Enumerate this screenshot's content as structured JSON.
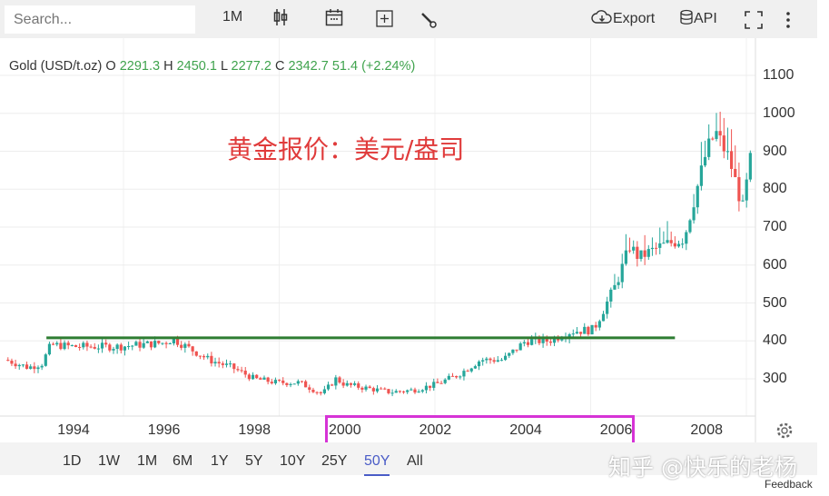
{
  "toolbar": {
    "search_placeholder": "Search...",
    "interval": "1M",
    "export": "Export",
    "api": "API"
  },
  "legend": {
    "name": "Gold (USD/t.oz)",
    "o_label": "O",
    "open": "2291.3",
    "h_label": "H",
    "high": "2450.1",
    "l_label": "L",
    "low": "2277.2",
    "c_label": "C",
    "close": "2342.7",
    "change": "51.4 (+2.24%)"
  },
  "annotation": "黄金报价：美元/盎司",
  "watermark": "知乎 @快乐的老杨",
  "feedback": "Feedback",
  "ranges": [
    "1D",
    "1W",
    "1M",
    "6M",
    "1Y",
    "5Y",
    "10Y",
    "25Y",
    "50Y",
    "All"
  ],
  "active_range": "50Y",
  "colors": {
    "up": "#26a69a",
    "down": "#ef5350",
    "hline": "#2e7d32",
    "highlight": "#d633d6",
    "annotation": "#e03b3b"
  },
  "chart_data": {
    "type": "candlestick",
    "interval": "monthly",
    "y_ticks": [
      "300",
      "400",
      "500",
      "600",
      "700",
      "800",
      "900",
      "1000",
      "1100"
    ],
    "x_ticks": [
      "1994",
      "1996",
      "1998",
      "2000",
      "2002",
      "2004",
      "2006",
      "2008"
    ],
    "ylim": [
      200,
      1150
    ],
    "xlim": [
      1992.5,
      2009.1
    ],
    "approx_close_path": [
      [
        1992.5,
        350
      ],
      [
        1993.0,
        330
      ],
      [
        1993.3,
        340
      ],
      [
        1993.5,
        390
      ],
      [
        1994,
        385
      ],
      [
        1995,
        385
      ],
      [
        1996,
        395
      ],
      [
        1996.2,
        405
      ],
      [
        1997,
        350
      ],
      [
        1997.5,
        330
      ],
      [
        1998,
        300
      ],
      [
        1998.5,
        290
      ],
      [
        1999,
        290
      ],
      [
        1999.5,
        260
      ],
      [
        1999.8,
        300
      ],
      [
        2000,
        285
      ],
      [
        2001,
        265
      ],
      [
        2001.5,
        270
      ],
      [
        2002,
        285
      ],
      [
        2002.5,
        310
      ],
      [
        2003,
        350
      ],
      [
        2003.5,
        350
      ],
      [
        2004,
        400
      ],
      [
        2004.5,
        400
      ],
      [
        2005,
        425
      ],
      [
        2005.5,
        430
      ],
      [
        2006,
        550
      ],
      [
        2006.3,
        650
      ],
      [
        2006.5,
        620
      ],
      [
        2007,
        650
      ],
      [
        2007.5,
        670
      ],
      [
        2008,
        900
      ],
      [
        2008.2,
        950
      ],
      [
        2008.5,
        880
      ],
      [
        2008.8,
        750
      ],
      [
        2009,
        900
      ]
    ],
    "horizontal_line": {
      "value": 408,
      "from": 1993.4,
      "to": 2007.3
    },
    "highlight_range": [
      "2000",
      "2006"
    ]
  }
}
